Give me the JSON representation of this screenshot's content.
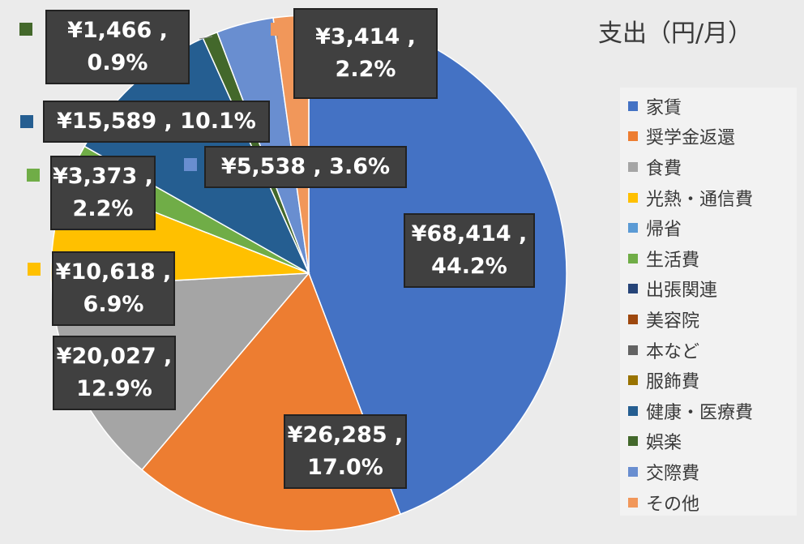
{
  "chart_data": {
    "type": "pie",
    "title": "支出（円/月）",
    "legend_position": "right",
    "slices": [
      {
        "name": "家賃",
        "value": 68414,
        "percent": "44.2%",
        "label": "¥68,414 ,\n44.2%",
        "color": "#4472C4"
      },
      {
        "name": "奨学金返還",
        "value": 26285,
        "percent": "17.0%",
        "label": "¥26,285 ,\n17.0%",
        "color": "#ED7D31"
      },
      {
        "name": "食費",
        "value": 20027,
        "percent": "12.9%",
        "label": "¥20,027 ,\n12.9%",
        "color": "#A5A5A5"
      },
      {
        "name": "光熱・通信費",
        "value": 10618,
        "percent": "6.9%",
        "label": "¥10,618 ,\n6.9%",
        "color": "#FFC000"
      },
      {
        "name": "帰省",
        "value": 0,
        "percent": "",
        "label": "",
        "color": "#5B9BD5"
      },
      {
        "name": "生活費",
        "value": 3373,
        "percent": "2.2%",
        "label": "¥3,373 ,\n2.2%",
        "color": "#70AD47"
      },
      {
        "name": "出張関連",
        "value": 0,
        "percent": "",
        "label": "",
        "color": "#264478"
      },
      {
        "name": "美容院",
        "value": 0,
        "percent": "",
        "label": "",
        "color": "#9E480E"
      },
      {
        "name": "本など",
        "value": 0,
        "percent": "",
        "label": "",
        "color": "#636363"
      },
      {
        "name": "服飾費",
        "value": 0,
        "percent": "",
        "label": "",
        "color": "#997300"
      },
      {
        "name": "健康・医療費",
        "value": 15589,
        "percent": "10.1%",
        "label": "¥15,589 , 10.1%",
        "color": "#255E91"
      },
      {
        "name": "娯楽",
        "value": 1466,
        "percent": "0.9%",
        "label": "¥1,466 ,\n0.9%",
        "color": "#43682B"
      },
      {
        "name": "交際費",
        "value": 5538,
        "percent": "3.6%",
        "label": "¥5,538 , 3.6%",
        "color": "#698ED0"
      },
      {
        "name": "その他",
        "value": 3414,
        "percent": "2.2%",
        "label": "¥3,414 ,\n2.2%",
        "color": "#F1975A"
      }
    ]
  }
}
